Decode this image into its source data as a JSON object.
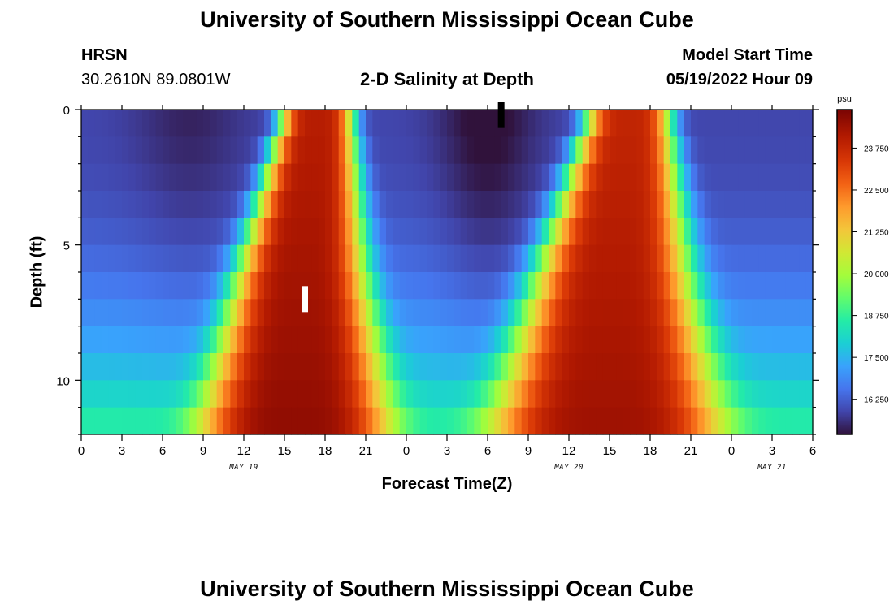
{
  "header": {
    "title": "University of Southern Mississippi Ocean Cube",
    "station_name": "HRSN",
    "station_coords": "30.2610N  89.0801W",
    "plot_title": "2-D Salinity at Depth",
    "model_label": "Model Start Time",
    "model_time": "05/19/2022 Hour 09"
  },
  "footer": {
    "title": "University of Southern Mississippi Ocean Cube"
  },
  "chart_data": {
    "type": "heatmap",
    "title": "2-D Salinity at Depth",
    "xlabel": "Forecast Time(Z)",
    "ylabel": "Depth (ft)",
    "x_ticks": [
      {
        "hours": 0,
        "label": "0"
      },
      {
        "hours": 3,
        "label": "3"
      },
      {
        "hours": 6,
        "label": "6"
      },
      {
        "hours": 9,
        "label": "9"
      },
      {
        "hours": 12,
        "label": "12"
      },
      {
        "hours": 15,
        "label": "15"
      },
      {
        "hours": 18,
        "label": "18"
      },
      {
        "hours": 21,
        "label": "21"
      },
      {
        "hours": 24,
        "label": "0"
      },
      {
        "hours": 27,
        "label": "3"
      },
      {
        "hours": 30,
        "label": "6"
      },
      {
        "hours": 33,
        "label": "9"
      },
      {
        "hours": 36,
        "label": "12"
      },
      {
        "hours": 39,
        "label": "15"
      },
      {
        "hours": 42,
        "label": "18"
      },
      {
        "hours": 45,
        "label": "21"
      },
      {
        "hours": 48,
        "label": "0"
      },
      {
        "hours": 51,
        "label": "3"
      },
      {
        "hours": 54,
        "label": "6"
      }
    ],
    "date_labels": [
      {
        "hours": 12,
        "label": "MAY 19"
      },
      {
        "hours": 36,
        "label": "MAY 20"
      },
      {
        "hours": 51,
        "label": "MAY 21"
      }
    ],
    "xlim": [
      0,
      54
    ],
    "y_ticks": [
      0,
      5,
      10
    ],
    "ylim": [
      0,
      12
    ],
    "depth_levels": 12,
    "colorbar": {
      "unit": "psu",
      "range": [
        15.2,
        24.9
      ],
      "ticks": [
        "23.750",
        "22.500",
        "21.250",
        "20.000",
        "18.750",
        "17.500",
        "16.250"
      ]
    },
    "salinity_model": {
      "note": "Approximate field read from colors: salty tidal pulses centred near forecast hours 17 and 40, fresher water between; deeper layers respond earlier and persist longer.",
      "pulses": [
        {
          "center_hours": 17.5,
          "surface_halfwidth": 2.6,
          "bottom_halfwidth": 7.0,
          "peak": 24.6
        },
        {
          "center_hours": 40.5,
          "surface_halfwidth": 3.0,
          "bottom_halfwidth": 8.5,
          "peak": 24.4
        }
      ],
      "background_surface": 15.9,
      "background_bottom": 18.8,
      "minimum_in_trough": 15.4
    },
    "markers": [
      {
        "hours": 16.5,
        "depth": 7.0,
        "color": "#ffffff"
      },
      {
        "hours": 31.0,
        "depth": 0.2,
        "color": "#000000"
      }
    ]
  }
}
